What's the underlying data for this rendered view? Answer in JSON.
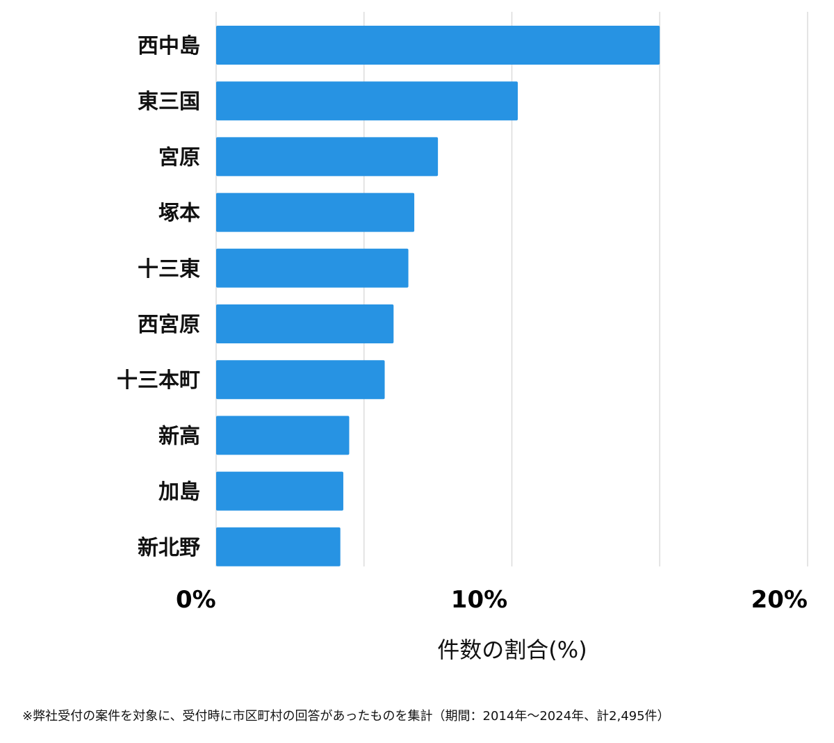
{
  "chart_data": {
    "type": "bar",
    "orientation": "horizontal",
    "categories": [
      "西中島",
      "東三国",
      "宮原",
      "塚本",
      "十三東",
      "西宮原",
      "十三本町",
      "新高",
      "加島",
      "新北野"
    ],
    "values": [
      15.0,
      10.2,
      7.5,
      6.7,
      6.5,
      6.0,
      5.7,
      4.5,
      4.3,
      4.2
    ],
    "xlabel": "件数の割合(%)",
    "ylabel": "",
    "xlim": [
      0,
      20
    ],
    "xticks": [
      {
        "value": 0,
        "label": "0%"
      },
      {
        "value": 10,
        "label": "10%"
      },
      {
        "value": 20,
        "label": "20%"
      }
    ],
    "gridlines": [
      0,
      5,
      10,
      15,
      20
    ],
    "grid": true,
    "bar_color": "#2793e3",
    "grid_color": "#dcdcdc"
  },
  "footnote": "※弊社受付の案件を対象に、受付時に市区町村の回答があったものを集計（期間：2014年～2024年、計2,495件）"
}
